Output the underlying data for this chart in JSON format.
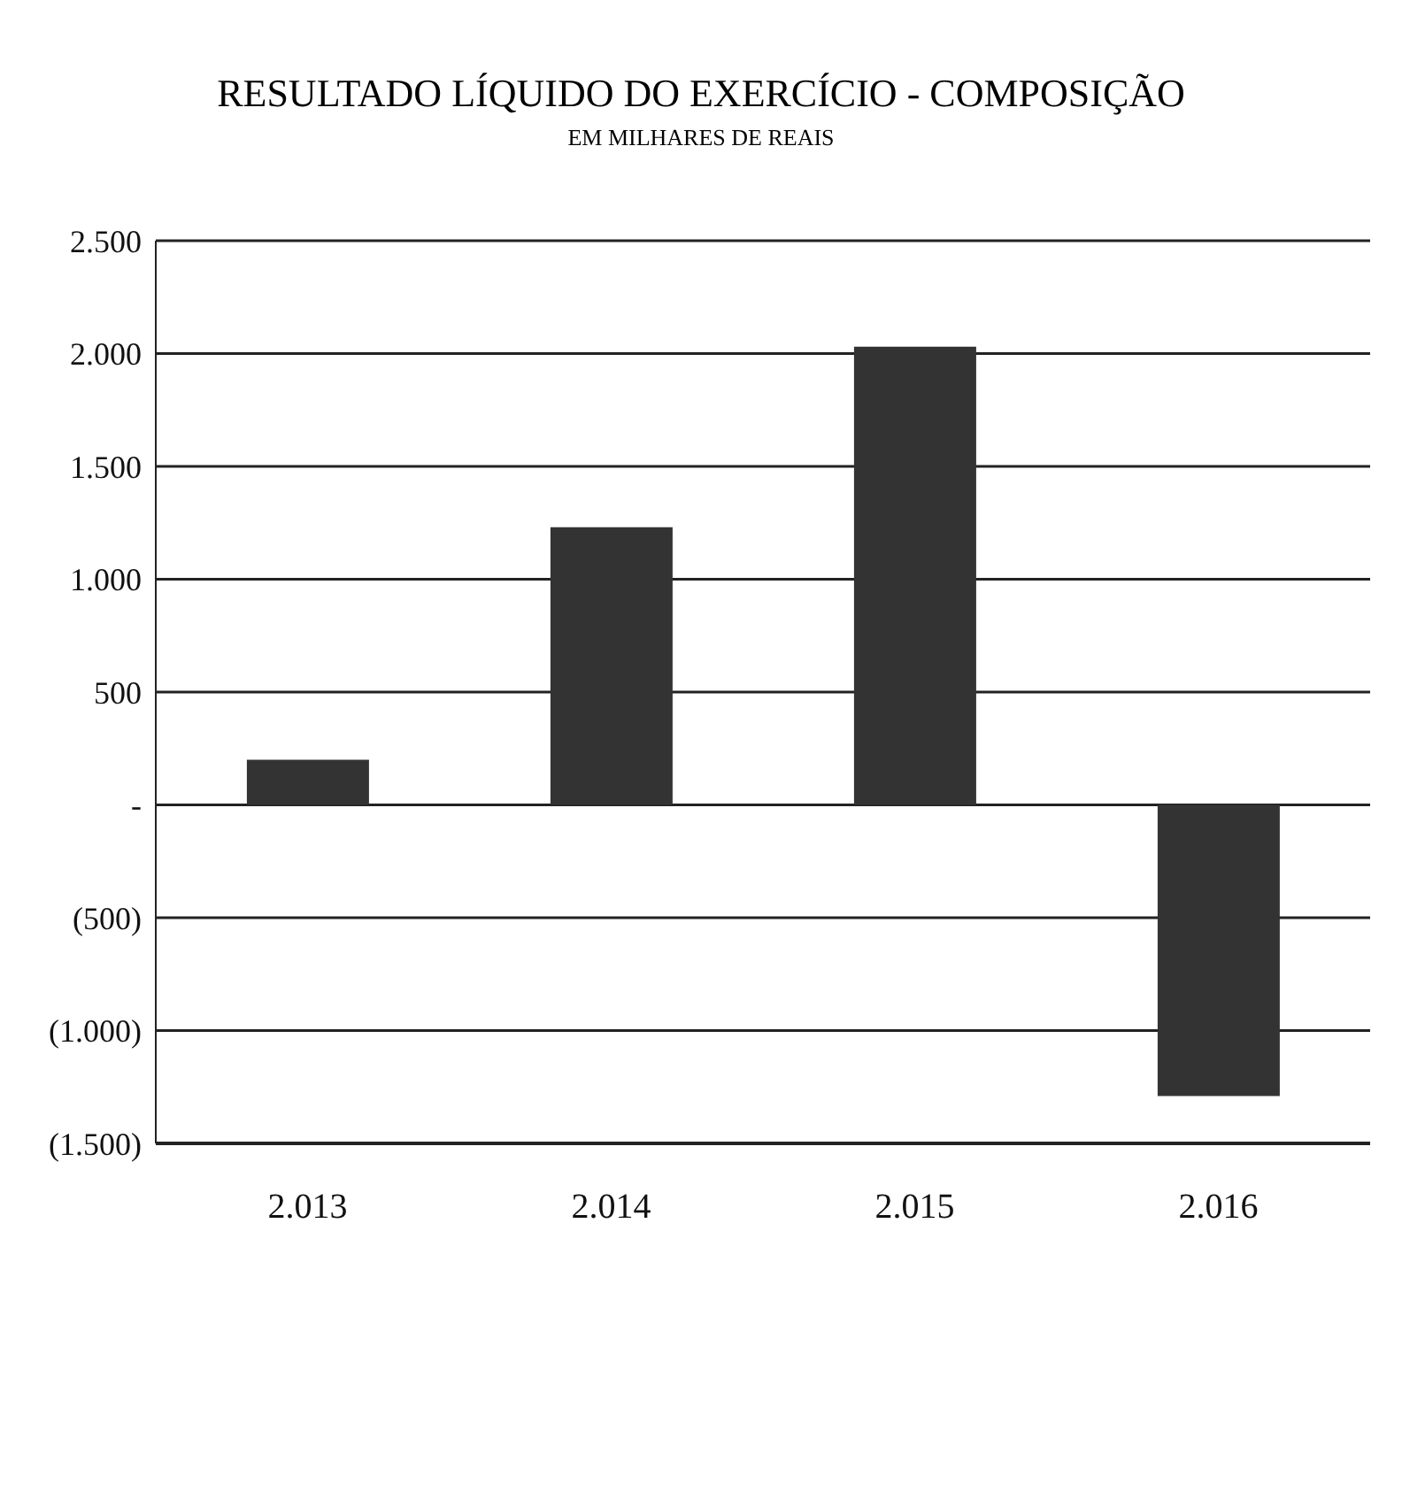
{
  "chart_data": {
    "type": "bar",
    "title": "RESULTADO LÍQUIDO DO EXERCÍCIO - COMPOSIÇÃO",
    "subtitle": "EM MILHARES  DE REAIS",
    "categories": [
      "2.013",
      "2.014",
      "2.015",
      "2.016"
    ],
    "values": [
      200,
      1230,
      2030,
      -1290
    ],
    "color": "#333333",
    "ylim": [
      -1500,
      2500
    ],
    "yticks": [
      {
        "value": -1500,
        "label": "(1.500)"
      },
      {
        "value": -1000,
        "label": "(1.000)"
      },
      {
        "value": -500,
        "label": "(500)"
      },
      {
        "value": 0,
        "label": "-"
      },
      {
        "value": 500,
        "label": "500"
      },
      {
        "value": 1000,
        "label": "1.000"
      },
      {
        "value": 1500,
        "label": "1.500"
      },
      {
        "value": 2000,
        "label": "2.000"
      },
      {
        "value": 2500,
        "label": "2.500"
      }
    ],
    "grid": "y",
    "legend": false
  }
}
